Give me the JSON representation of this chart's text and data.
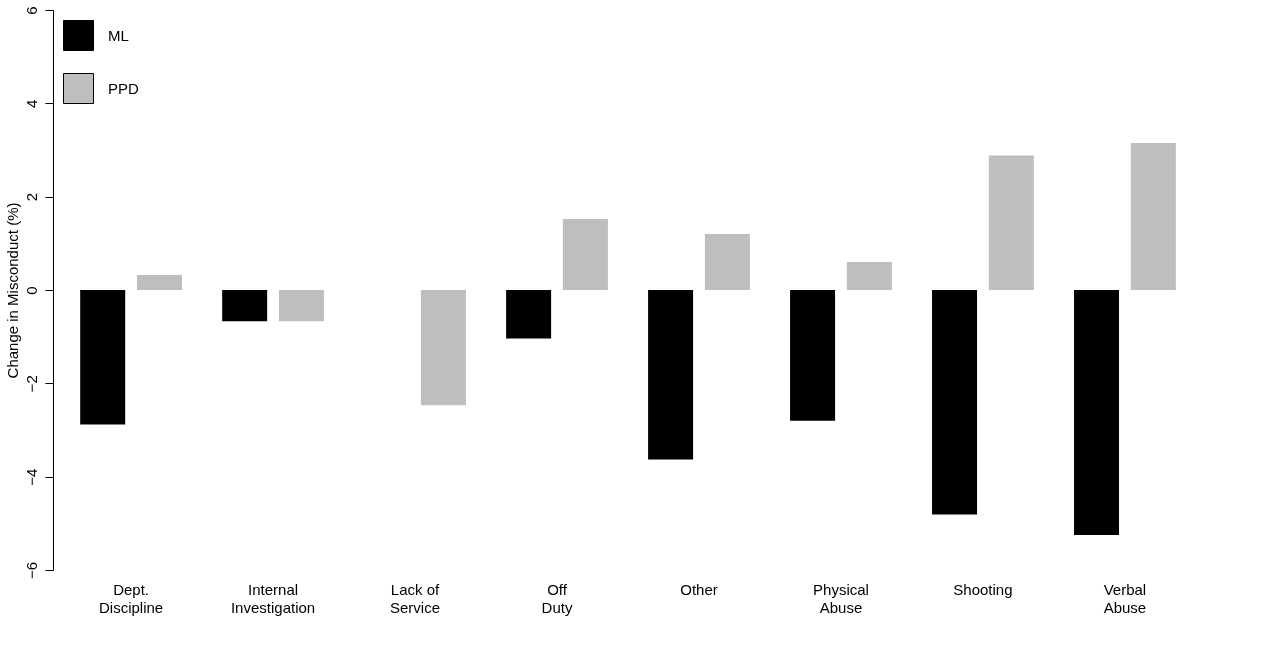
{
  "chart_data": {
    "type": "bar",
    "ylabel": "Change in Misconduct (%)",
    "categories": [
      "Dept.\nDiscipline",
      "Internal\nInvestigation",
      "Lack of\nService",
      "Off\nDuty",
      "Other",
      "Physical\nAbuse",
      "Shooting",
      "Verbal\nAbuse"
    ],
    "series": [
      {
        "name": "ML",
        "color": "#000000",
        "values": [
          -2.88,
          -0.67,
          null,
          -1.04,
          -3.63,
          -2.8,
          -4.81,
          -5.25
        ]
      },
      {
        "name": "PPD",
        "color": "#bebebe",
        "values": [
          0.32,
          -0.67,
          -2.47,
          1.52,
          1.2,
          0.6,
          2.88,
          3.15
        ]
      }
    ],
    "ylim": [
      -6,
      6
    ],
    "yticks": [
      -6,
      -4,
      -2,
      0,
      2,
      4,
      6
    ],
    "grid": false,
    "legend": "top left"
  }
}
